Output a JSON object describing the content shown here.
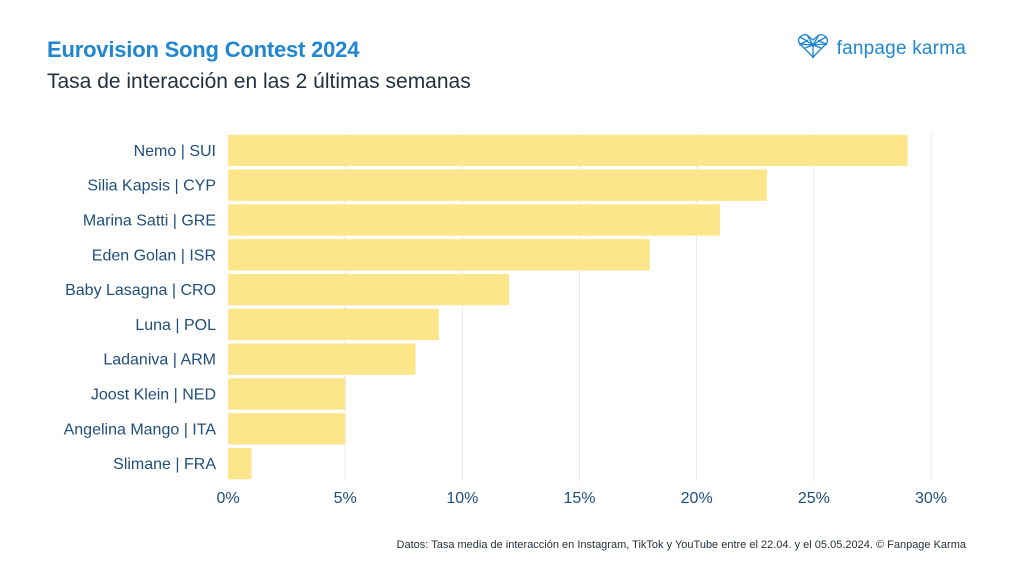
{
  "header": {
    "title": "Eurovision Song Contest 2024",
    "subtitle": "Tasa de interacción en las 2 últimas semanas"
  },
  "brand": {
    "name": "fanpage karma",
    "icon": "heart-network-icon",
    "color": "#1f86cf"
  },
  "footnote": "Datos: Tasa media de interacción en Instagram, TikTok y YouTube entre el 22.04. y el 05.05.2024. © Fanpage Karma",
  "colors": {
    "bar": "#fde68a",
    "grid": "#e5e7eb",
    "label": "#1f4e79",
    "title": "#1f86cf"
  },
  "chart_data": {
    "type": "bar",
    "orientation": "horizontal",
    "title": "Eurovision Song Contest 2024",
    "subtitle": "Tasa de interacción en las 2 últimas semanas",
    "categories": [
      "Nemo | SUI",
      "Silia Kapsis | CYP",
      "Marina Satti | GRE",
      "Eden Golan | ISR",
      "Baby Lasagna | CRO",
      "Luna | POL",
      "Ladaniva | ARM",
      "Joost Klein | NED",
      "Angelina Mango | ITA",
      "Slimane | FRA"
    ],
    "values": [
      29,
      23,
      21,
      18,
      12,
      9,
      8,
      5,
      5,
      1
    ],
    "unit": "%",
    "xlim": [
      0,
      30
    ],
    "xticks": [
      "0%",
      "5%",
      "10%",
      "15%",
      "20%",
      "25%",
      "30%"
    ],
    "xtick_values": [
      0,
      5,
      10,
      15,
      20,
      25,
      30
    ],
    "grid": true,
    "legend": "none"
  }
}
